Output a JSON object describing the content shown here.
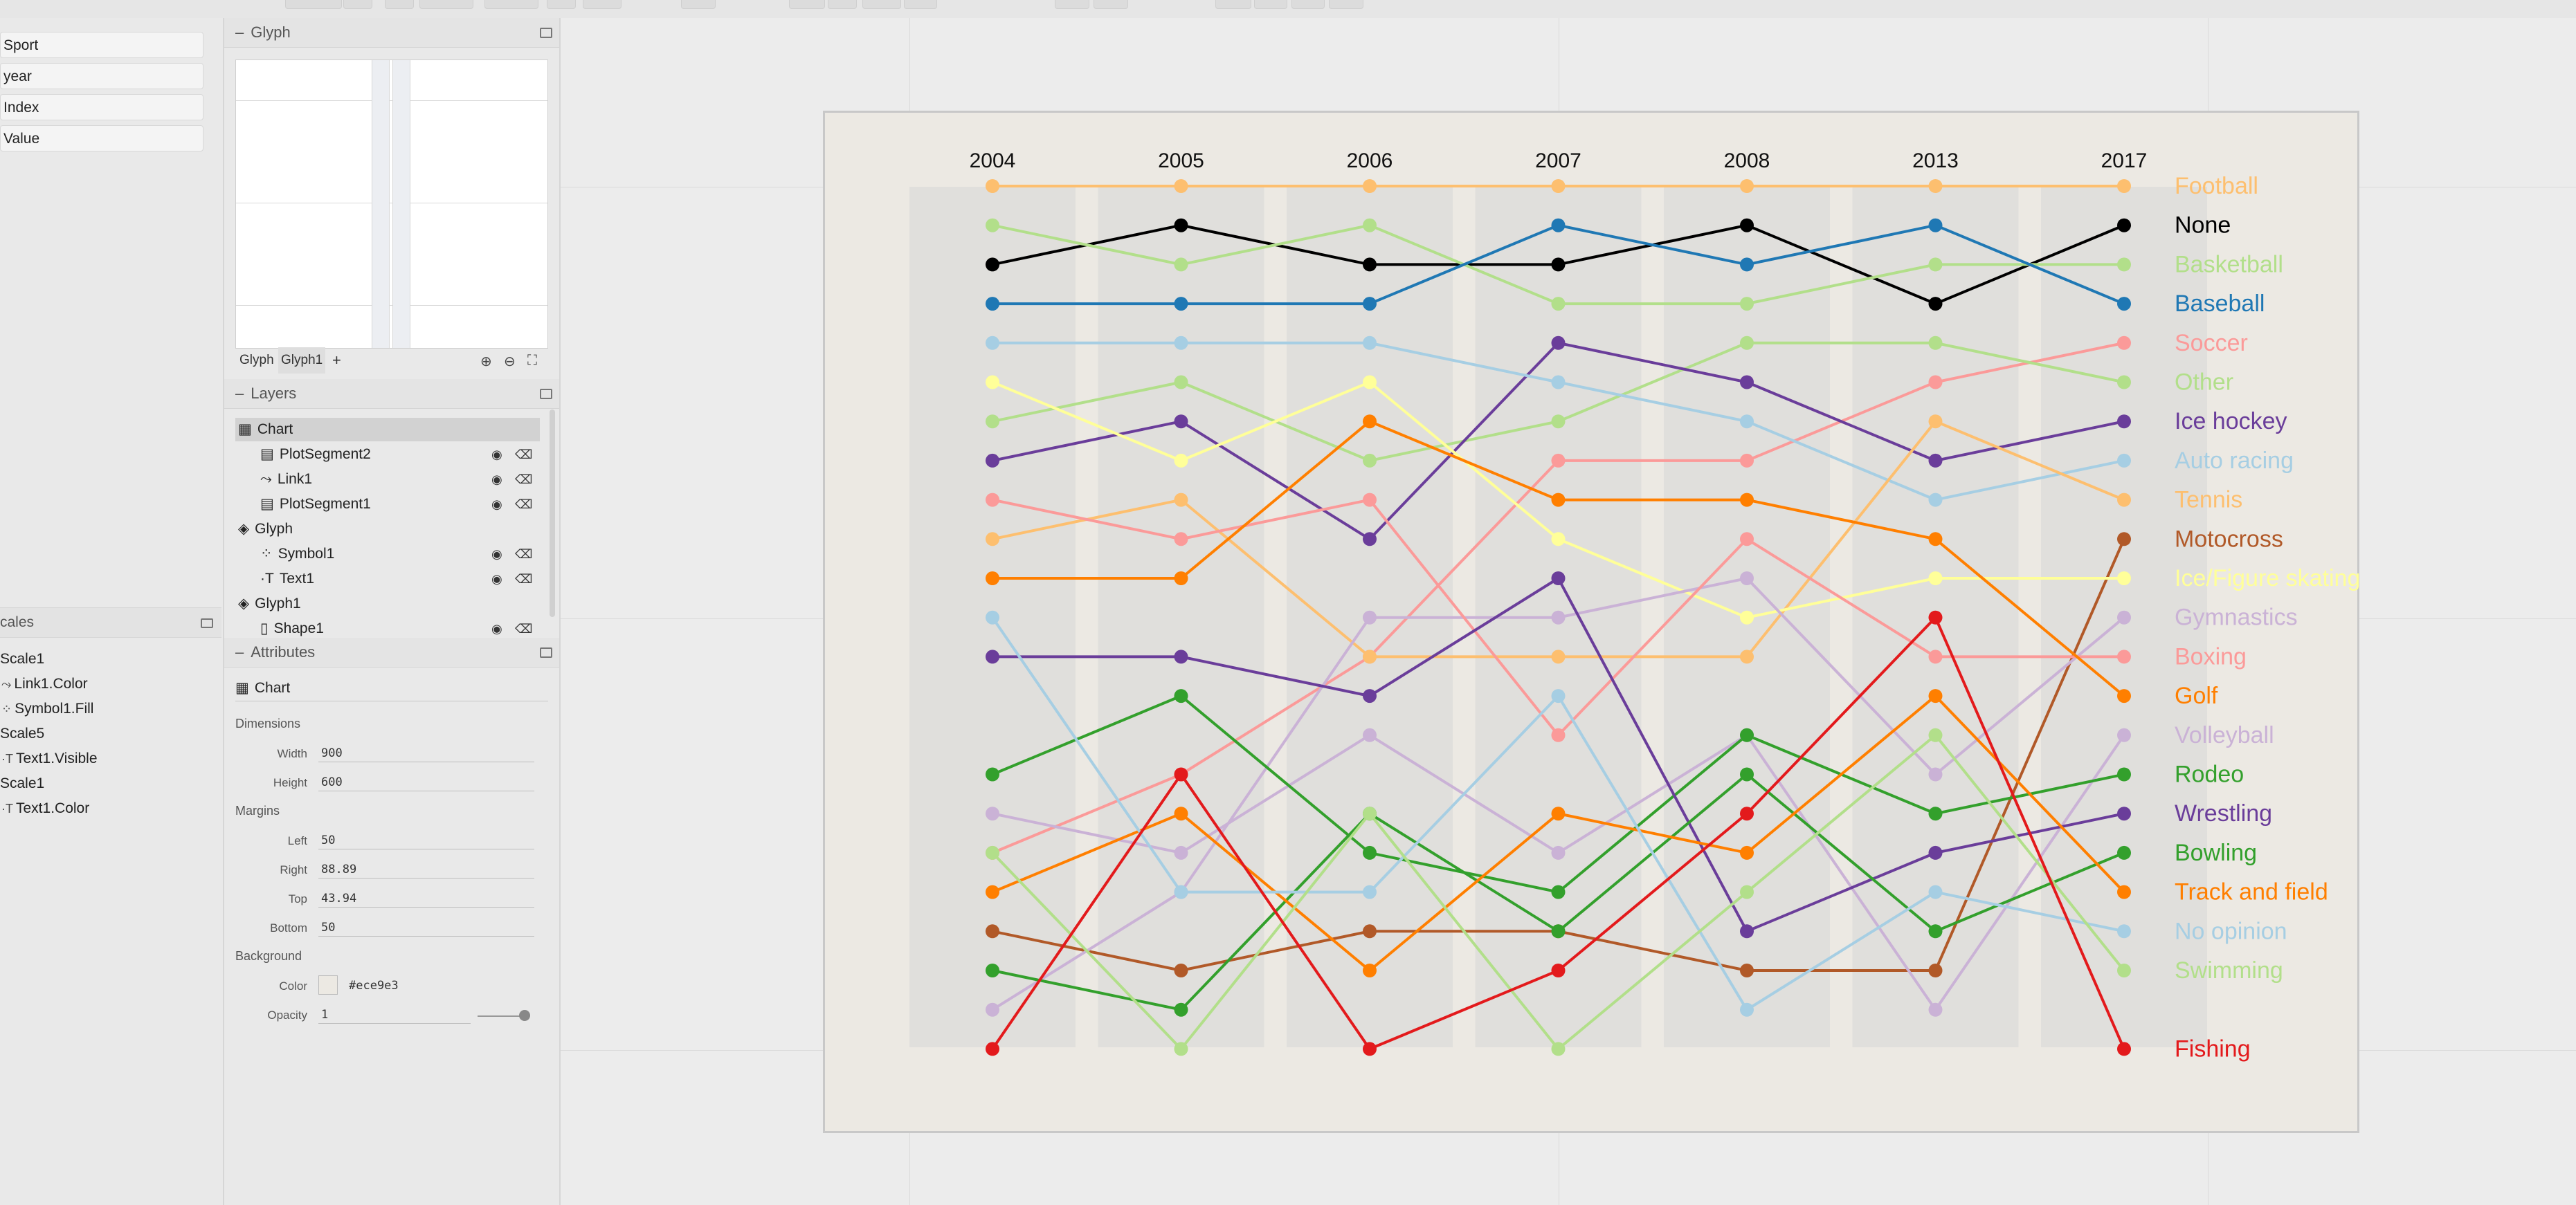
{
  "dataset": {
    "fields": [
      "Sport",
      "year",
      "Index",
      "Value"
    ]
  },
  "scales": {
    "header": "cales",
    "items": [
      {
        "label": "Scale1",
        "sub": false,
        "icon": ""
      },
      {
        "label": "Link1.Color",
        "sub": true,
        "icon": "link-icon"
      },
      {
        "label": "Symbol1.Fill",
        "sub": true,
        "icon": "symbol-icon"
      },
      {
        "label": "Scale5",
        "sub": false,
        "icon": ""
      },
      {
        "label": "Text1.Visible",
        "sub": true,
        "icon": "text-icon"
      },
      {
        "label": "Scale1",
        "sub": false,
        "icon": ""
      },
      {
        "label": "Text1.Color",
        "sub": true,
        "icon": "text-icon"
      }
    ]
  },
  "glyph_panel": {
    "title": "Glyph",
    "tabs": [
      "Glyph",
      "Glyph1",
      "+"
    ]
  },
  "layers_panel": {
    "title": "Layers",
    "items": [
      {
        "label": "Chart",
        "level": 0,
        "selected": true,
        "icon": "chart-icon",
        "controls": false
      },
      {
        "label": "PlotSegment2",
        "level": 1,
        "selected": false,
        "icon": "plot-segment-icon",
        "controls": true
      },
      {
        "label": "Link1",
        "level": 1,
        "selected": false,
        "icon": "link-icon",
        "controls": true
      },
      {
        "label": "PlotSegment1",
        "level": 1,
        "selected": false,
        "icon": "plot-segment-icon",
        "controls": true
      },
      {
        "label": "Glyph",
        "level": 0,
        "selected": false,
        "icon": "glyph-icon",
        "controls": false
      },
      {
        "label": "Symbol1",
        "level": 1,
        "selected": false,
        "icon": "symbol-icon",
        "controls": true
      },
      {
        "label": "Text1",
        "level": 1,
        "selected": false,
        "icon": "text-icon",
        "controls": true
      },
      {
        "label": "Glyph1",
        "level": 0,
        "selected": false,
        "icon": "glyph-icon",
        "controls": false
      },
      {
        "label": "Shape1",
        "level": 1,
        "selected": false,
        "icon": "shape-icon",
        "controls": true
      }
    ]
  },
  "attributes_panel": {
    "title": "Attributes",
    "object": "Chart",
    "dimensions_label": "Dimensions",
    "width_label": "Width",
    "width": "900",
    "height_label": "Height",
    "height": "600",
    "margins_label": "Margins",
    "left_label": "Left",
    "left": "50",
    "right_label": "Right",
    "right": "88.89",
    "top_label": "Top",
    "top": "43.94",
    "bottom_label": "Bottom",
    "bottom": "50",
    "background_label": "Background",
    "color_label": "Color",
    "color": "#ece9e3",
    "opacity_label": "Opacity",
    "opacity": "1"
  },
  "chart_data": {
    "type": "line",
    "subtype": "bump",
    "x": [
      "2004",
      "2005",
      "2006",
      "2007",
      "2008",
      "2013",
      "2017"
    ],
    "ylabel": "",
    "xlabel": "",
    "y_direction": "rank, 1 = top",
    "ylim": [
      1,
      22
    ],
    "grid": false,
    "legend": "right, labels at line ends",
    "background": "#ece9e3",
    "series": [
      {
        "name": "Football",
        "color": "#fdbf6f",
        "values": [
          1,
          1,
          1,
          1,
          1,
          1,
          1
        ]
      },
      {
        "name": "None",
        "color": "#000000",
        "values": [
          3,
          2,
          3,
          3,
          2,
          4,
          2
        ]
      },
      {
        "name": "Basketball",
        "color": "#b2df8a",
        "values": [
          2,
          3,
          2,
          4,
          4,
          3,
          3
        ]
      },
      {
        "name": "Baseball",
        "color": "#1f78b4",
        "values": [
          4,
          4,
          4,
          2,
          3,
          2,
          4
        ]
      },
      {
        "name": "Soccer",
        "color": "#fb9a99",
        "values": [
          18,
          16,
          13,
          8,
          8,
          6,
          5
        ]
      },
      {
        "name": "Other",
        "color": "#b2df8a",
        "values": [
          7,
          6,
          8,
          7,
          5,
          5,
          6
        ]
      },
      {
        "name": "Ice hockey",
        "color": "#6a3d9a",
        "values": [
          8,
          7,
          10,
          5,
          6,
          8,
          7
        ]
      },
      {
        "name": "Auto racing",
        "color": "#a6cee3",
        "values": [
          5,
          5,
          5,
          6,
          7,
          9,
          8
        ]
      },
      {
        "name": "Tennis",
        "color": "#fdbf6f",
        "values": [
          10,
          9,
          13,
          13,
          13,
          7,
          9
        ]
      },
      {
        "name": "Motocross",
        "color": "#b15928",
        "values": [
          20,
          21,
          20,
          20,
          21,
          21,
          10
        ]
      },
      {
        "name": "Ice/Figure skating",
        "color": "#ffff99",
        "values": [
          6,
          8,
          6,
          10,
          12,
          11,
          11
        ]
      },
      {
        "name": "Gymnastics",
        "color": "#cab2d6",
        "values": [
          22,
          19,
          12,
          12,
          11,
          16,
          12
        ]
      },
      {
        "name": "Boxing",
        "color": "#fb9a99",
        "values": [
          9,
          10,
          9,
          15,
          10,
          13,
          13
        ]
      },
      {
        "name": "Golf",
        "color": "#ff7f00",
        "values": [
          11,
          11,
          7,
          9,
          9,
          10,
          14
        ]
      },
      {
        "name": "Volleyball",
        "color": "#cab2d6",
        "values": [
          17,
          18,
          15,
          18,
          15,
          22,
          15
        ]
      },
      {
        "name": "Rodeo",
        "color": "#33a02c",
        "values": [
          16,
          14,
          18,
          19,
          15,
          17,
          16
        ]
      },
      {
        "name": "Wrestling",
        "color": "#6a3d9a",
        "values": [
          13,
          13,
          14,
          11,
          20,
          18,
          17
        ]
      },
      {
        "name": "Bowling",
        "color": "#33a02c",
        "values": [
          21,
          22,
          17,
          20,
          16,
          20,
          18
        ]
      },
      {
        "name": "Track and field",
        "color": "#ff7f00",
        "values": [
          19,
          17,
          21,
          17,
          18,
          14,
          19
        ]
      },
      {
        "name": "No opinion",
        "color": "#a6cee3",
        "values": [
          12,
          19,
          19,
          14,
          22,
          19,
          20
        ]
      },
      {
        "name": "Swimming",
        "color": "#b2df8a",
        "values": [
          18,
          23,
          17,
          23,
          19,
          15,
          21
        ]
      },
      {
        "name": "Fishing",
        "color": "#e31a1c",
        "values": [
          23,
          16,
          23,
          21,
          17,
          12,
          23
        ]
      }
    ]
  }
}
